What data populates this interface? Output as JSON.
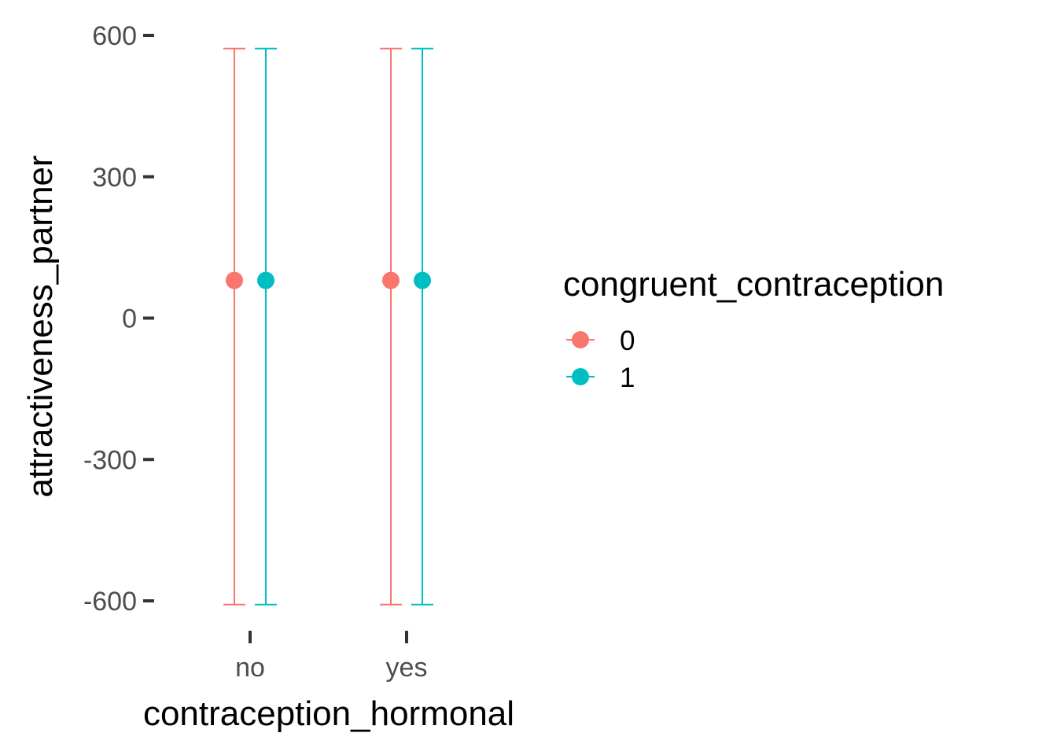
{
  "chart_data": {
    "type": "errorbar",
    "xlabel": "contraception_hormonal",
    "ylabel": "attractiveness_partner",
    "categories": [
      "no",
      "yes"
    ],
    "ylim": [
      -710,
      600
    ],
    "yticks": [
      600,
      300,
      0,
      -300,
      -600
    ],
    "ytick_labels": [
      "600",
      "300",
      "0",
      "-300",
      "-600"
    ],
    "grid": false,
    "legend": {
      "title": "congruent_contraception",
      "position": "right"
    },
    "series": [
      {
        "name": "0",
        "color": "#F8766D",
        "points": [
          {
            "x": "no",
            "y": 80,
            "ymin": -608,
            "ymax": 572
          },
          {
            "x": "yes",
            "y": 80,
            "ymin": -608,
            "ymax": 572
          }
        ]
      },
      {
        "name": "1",
        "color": "#00BFC4",
        "points": [
          {
            "x": "no",
            "y": 80,
            "ymin": -608,
            "ymax": 572
          },
          {
            "x": "yes",
            "y": 80,
            "ymin": -608,
            "ymax": 572
          }
        ]
      }
    ]
  }
}
